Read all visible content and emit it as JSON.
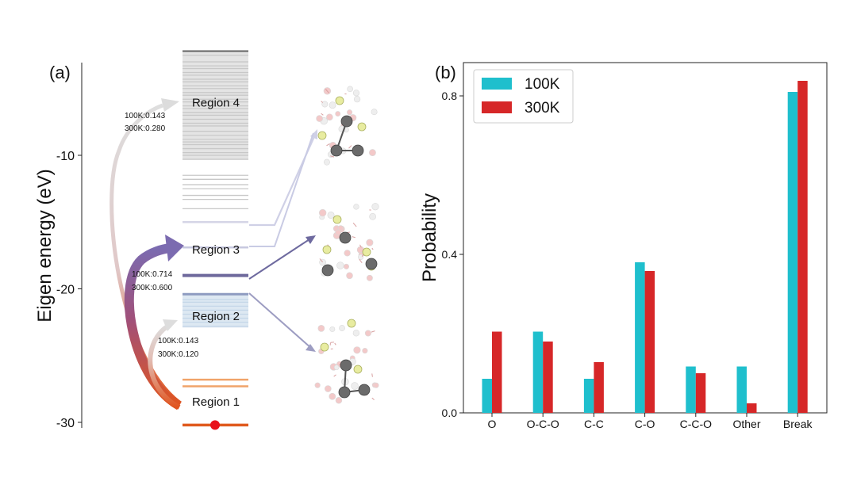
{
  "chart_data": [
    {
      "panel": "(a)",
      "type": "energy-level-diagram",
      "ylabel": "Eigen energy (eV)",
      "ylim": [
        -30.3,
        -3
      ],
      "yticks": [
        -10,
        -20,
        -30
      ],
      "regions": [
        {
          "label": "Region 4",
          "energy": -6.0
        },
        {
          "label": "Region 3",
          "energy": -17.0
        },
        {
          "label": "Region 2",
          "energy": -22.0
        },
        {
          "label": "Region 1",
          "energy": -28.4
        }
      ],
      "levels": {
        "region4": [
          -2.2,
          -2.5,
          -3.0,
          -3.3,
          -3.5,
          -3.8,
          -4.0,
          -4.3,
          -4.5,
          -4.8,
          -5.0,
          -5.3,
          -5.5,
          -5.8,
          -6.0,
          -6.3,
          -6.5,
          -6.8,
          -7.0,
          -7.3,
          -7.6,
          -7.8,
          -8.2,
          -8.5,
          -8.8,
          -9.0,
          -9.2,
          -9.5,
          -9.8,
          -10.0,
          -10.3,
          -11.5,
          -11.8,
          -12.2,
          -12.5,
          -13.0,
          -13.3,
          -14.0
        ],
        "region3": [
          -15.0,
          -16.9,
          -19.0
        ],
        "region2": [
          -20.4,
          -20.8,
          -21.0,
          -21.3,
          -21.6,
          -21.9,
          -22.2,
          -22.5,
          -22.8
        ],
        "region1": [
          -26.8,
          -27.3,
          -30.2
        ]
      },
      "transitions": [
        {
          "from": "Region 1",
          "to": "Region 4",
          "label_100K": "100K:0.143",
          "label_300K": "300K:0.280"
        },
        {
          "from": "Region 1",
          "to": "Region 3",
          "label_100K": "100K:0.714",
          "label_300K": "300K:0.600"
        },
        {
          "from": "Region 1",
          "to": "Region 2",
          "label_100K": "100K:0.143",
          "label_300K": "300K:0.120"
        }
      ]
    },
    {
      "panel": "(b)",
      "type": "bar",
      "categories": [
        "O",
        "O-C-O",
        "C-C",
        "C-O",
        "C-C-O",
        "Other",
        "Break"
      ],
      "series": [
        {
          "name": "100K",
          "color": "#1fbfcd",
          "values": [
            0.086,
            0.205,
            0.086,
            0.38,
            0.117,
            0.117,
            0.81
          ]
        },
        {
          "name": "300K",
          "color": "#d62728",
          "values": [
            0.205,
            0.18,
            0.128,
            0.358,
            0.1,
            0.024,
            0.838
          ]
        }
      ],
      "xlabel": "",
      "ylabel": "Probability",
      "ylim": [
        0,
        0.88
      ],
      "yticks": [
        0.0,
        0.4,
        0.8
      ],
      "ytick_labels": [
        "0.0",
        "0.4",
        "0.8"
      ],
      "legend": "top-left"
    }
  ]
}
